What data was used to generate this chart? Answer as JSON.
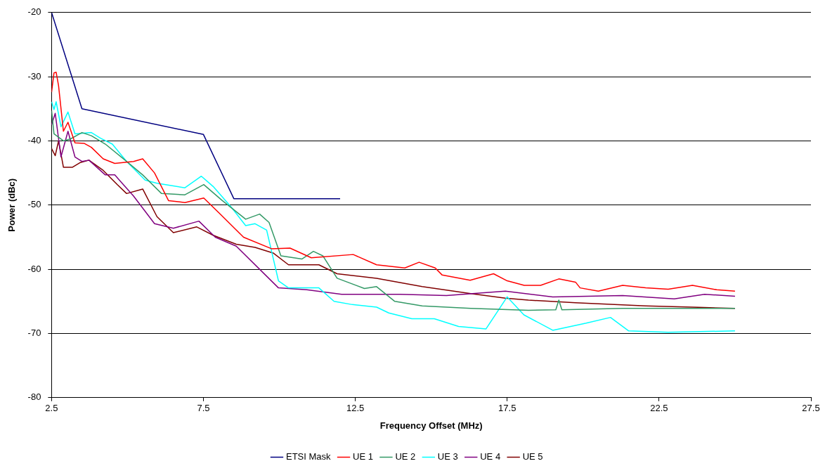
{
  "chart_data": {
    "type": "line",
    "xlabel": "Frequency Offset (MHz)",
    "ylabel": "Power (dBc)",
    "xlim": [
      2.5,
      27.5
    ],
    "xticks": [
      2.5,
      7.5,
      12.5,
      17.5,
      22.5,
      27.5
    ],
    "ylim": [
      -80,
      -20
    ],
    "yticks": [
      -80,
      -70,
      -60,
      -50,
      -40,
      -30,
      -20
    ],
    "grid": "y",
    "legend": "bottom",
    "marker": "none",
    "series": [
      {
        "name": "ETSI Mask",
        "color": "#000080",
        "x": [
          2.5,
          3.5,
          7.5,
          8.5,
          12
        ],
        "values": [
          -20,
          -35,
          -39,
          -49,
          -49
        ]
      },
      {
        "name": "UE 1",
        "color": "#ff0000",
        "x": [
          2.5,
          2.58,
          2.65,
          2.73,
          2.89,
          3.04,
          3.27,
          3.58,
          3.81,
          4.2,
          4.58,
          5.2,
          5.5,
          5.89,
          6.35,
          6.89,
          7.51,
          8.05,
          8.82,
          9.74,
          10.35,
          11.05,
          12.43,
          13.2,
          14.13,
          14.6,
          15.13,
          15.36,
          16.28,
          17.05,
          17.5,
          18.06,
          18.6,
          19.2,
          19.75,
          19.9,
          20.5,
          21.3,
          22.06,
          22.8,
          23.6,
          24.4,
          25.0
        ],
        "values": [
          -32.4,
          -29.4,
          -29.3,
          -31.4,
          -38.5,
          -37.1,
          -40.3,
          -40.4,
          -41,
          -42.8,
          -43.5,
          -43.2,
          -42.8,
          -45,
          -49.3,
          -49.6,
          -48.9,
          -51.4,
          -55,
          -56.8,
          -56.7,
          -58.2,
          -57.7,
          -59.3,
          -59.8,
          -58.9,
          -59.8,
          -60.9,
          -61.7,
          -60.7,
          -61.8,
          -62.5,
          -62.5,
          -61.5,
          -62,
          -62.9,
          -63.4,
          -62.5,
          -62.9,
          -63.1,
          -62.5,
          -63.2,
          -63.4
        ]
      },
      {
        "name": "UE 2",
        "color": "#339966",
        "x": [
          2.5,
          2.58,
          2.89,
          3.12,
          3.5,
          3.81,
          4.27,
          4.97,
          5.5,
          6.12,
          6.89,
          7.51,
          8.12,
          8.89,
          9.35,
          9.66,
          10.05,
          10.74,
          11.12,
          11.43,
          11.9,
          12.8,
          13.2,
          13.8,
          14.7,
          16.3,
          18.2,
          19.1,
          19.2,
          19.3,
          21.3,
          25.0
        ],
        "values": [
          -35.3,
          -38.9,
          -40,
          -39.7,
          -38.7,
          -39.2,
          -40.5,
          -43.2,
          -45.3,
          -48.2,
          -48.4,
          -46.8,
          -49.3,
          -52.2,
          -51.4,
          -52.7,
          -57.9,
          -58.4,
          -57.2,
          -57.9,
          -61.4,
          -63,
          -62.7,
          -65,
          -65.7,
          -66.1,
          -66.4,
          -66.3,
          -64.8,
          -66.3,
          -66.1,
          -66.1
        ]
      },
      {
        "name": "UE 3",
        "color": "#00ffff",
        "x": [
          2.5,
          2.58,
          2.65,
          2.81,
          3.04,
          3.27,
          3.81,
          4.12,
          4.5,
          4.97,
          5.58,
          5.97,
          6.89,
          7.43,
          7.82,
          8.43,
          8.89,
          9.2,
          9.58,
          9.97,
          10.3,
          11.3,
          11.8,
          12.4,
          13.2,
          13.6,
          14.36,
          15.1,
          15.9,
          16.8,
          17.5,
          18.05,
          19.0,
          20.1,
          20.9,
          21.5,
          22.8,
          25.0
        ],
        "values": [
          -33.9,
          -35.1,
          -33.9,
          -37.8,
          -35.5,
          -38.9,
          -38.7,
          -39.6,
          -40.5,
          -43.2,
          -46.1,
          -46.6,
          -47.3,
          -45.5,
          -47.1,
          -50.4,
          -53.2,
          -52.9,
          -53.9,
          -61.8,
          -62.9,
          -62.9,
          -65,
          -65.5,
          -65.9,
          -66.8,
          -67.7,
          -67.7,
          -68.9,
          -69.3,
          -64.3,
          -67.1,
          -69.5,
          -68.4,
          -67.5,
          -69.6,
          -69.8,
          -69.6
        ]
      },
      {
        "name": "UE 4",
        "color": "#800080",
        "x": [
          2.5,
          2.62,
          2.81,
          3.04,
          3.27,
          3.5,
          3.73,
          4.27,
          4.58,
          5.2,
          5.89,
          6.51,
          7.35,
          7.89,
          8.58,
          9.35,
          9.97,
          10.9,
          12.05,
          13.97,
          15.5,
          17.44,
          19.0,
          21.3,
          23.0,
          24.0,
          25.0
        ],
        "values": [
          -37.5,
          -35.7,
          -42.5,
          -38.5,
          -42.5,
          -43.2,
          -43,
          -45.3,
          -45.3,
          -48.6,
          -52.9,
          -53.6,
          -52.5,
          -55,
          -56.4,
          -60,
          -62.9,
          -63.2,
          -63.9,
          -63.9,
          -64.1,
          -63.4,
          -64.3,
          -64.1,
          -64.6,
          -63.9,
          -64.2
        ]
      },
      {
        "name": "UE 5",
        "color": "#800000",
        "x": [
          2.5,
          2.62,
          2.73,
          2.89,
          3.19,
          3.43,
          3.73,
          4.2,
          4.66,
          4.97,
          5.5,
          5.97,
          6.51,
          7.28,
          7.82,
          8.58,
          9.2,
          9.81,
          10.3,
          11.3,
          11.9,
          13.2,
          14.7,
          16.3,
          17.44,
          18.2,
          19.75,
          22.06,
          23.6,
          25.0
        ],
        "values": [
          -41.2,
          -42.3,
          -40,
          -44.1,
          -44.1,
          -43.4,
          -43,
          -44.6,
          -46.8,
          -48.2,
          -47.5,
          -51.8,
          -54.3,
          -53.4,
          -54.7,
          -56.1,
          -56.6,
          -57.5,
          -59.3,
          -59.3,
          -60.7,
          -61.4,
          -62.7,
          -63.8,
          -64.5,
          -64.8,
          -65.2,
          -65.7,
          -65.9,
          -66.1
        ]
      }
    ]
  }
}
